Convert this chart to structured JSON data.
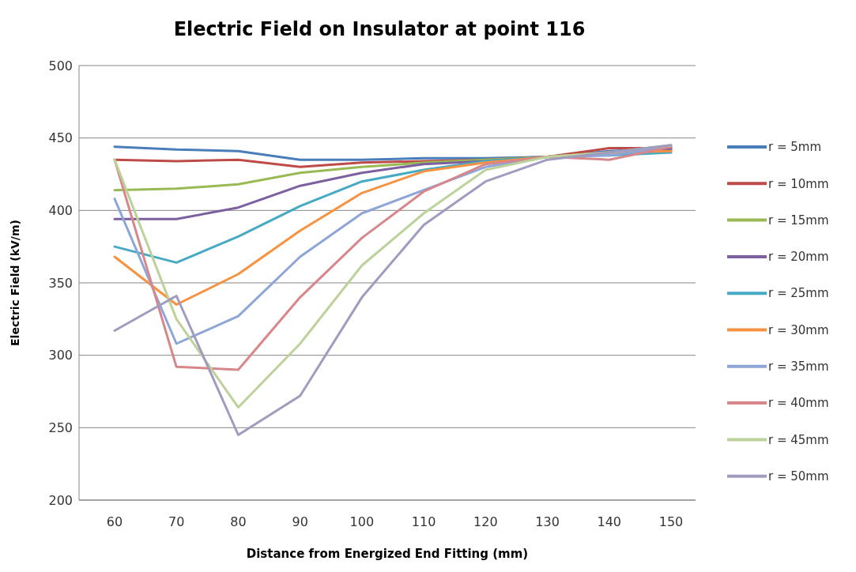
{
  "chart_data": {
    "type": "line",
    "title": "Electric Field on Insulator at point 116",
    "xlabel": "Distance from Energized End Fitting (mm)",
    "ylabel": "Electric Field (kV/m)",
    "categories": [
      "60",
      "70",
      "80",
      "90",
      "100",
      "110",
      "120",
      "130",
      "140",
      "150"
    ],
    "ylim": [
      200,
      500
    ],
    "yticks": [
      200,
      250,
      300,
      350,
      400,
      450,
      500
    ],
    "grid": "y",
    "legend": "right",
    "marker": "none",
    "line_style": "solid",
    "series": [
      {
        "name": "r = 5mm",
        "color": "#4a7ebb",
        "values": [
          444,
          442,
          441,
          435,
          435,
          436,
          436,
          437,
          441,
          443
        ]
      },
      {
        "name": "r = 10mm",
        "color": "#be4b48",
        "values": [
          435,
          434,
          435,
          430,
          433,
          434,
          435,
          437,
          443,
          443
        ]
      },
      {
        "name": "r = 15mm",
        "color": "#98b954",
        "values": [
          414,
          415,
          418,
          426,
          430,
          433,
          435,
          437,
          440,
          441
        ]
      },
      {
        "name": "r = 20mm",
        "color": "#7d60a0",
        "values": [
          394,
          394,
          402,
          417,
          426,
          432,
          434,
          437,
          440,
          442
        ]
      },
      {
        "name": "r = 25mm",
        "color": "#46aac5",
        "values": [
          375,
          364,
          382,
          403,
          420,
          428,
          434,
          437,
          438,
          440
        ]
      },
      {
        "name": "r = 30mm",
        "color": "#f69240",
        "values": [
          368,
          335,
          356,
          386,
          412,
          427,
          433,
          437,
          440,
          441
        ]
      },
      {
        "name": "r = 35mm",
        "color": "#8ea5d8",
        "values": [
          408,
          308,
          327,
          368,
          398,
          414,
          430,
          437,
          438,
          444
        ]
      },
      {
        "name": "r = 40mm",
        "color": "#d7878a",
        "values": [
          435,
          292,
          290,
          340,
          381,
          413,
          432,
          437,
          435,
          444
        ]
      },
      {
        "name": "r = 45mm",
        "color": "#bcd29a",
        "values": [
          435,
          325,
          264,
          308,
          362,
          398,
          428,
          437,
          440,
          445
        ]
      },
      {
        "name": "r = 50mm",
        "color": "#a09cc0",
        "values": [
          317,
          341,
          245,
          272,
          340,
          390,
          420,
          435,
          440,
          445
        ]
      }
    ]
  }
}
